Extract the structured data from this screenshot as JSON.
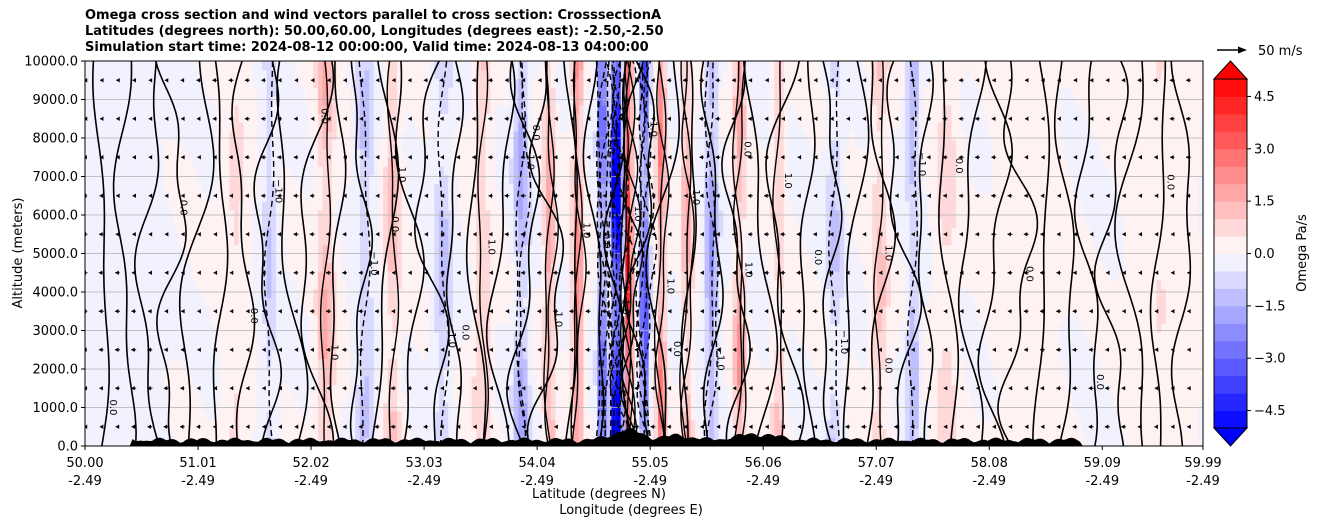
{
  "chart_data": {
    "type": "contour-section",
    "title_lines": [
      "Omega cross section and wind vectors parallel to cross section: CrosssectionA",
      "Latitudes (degrees north): 50.00,60.00, Longitudes (degrees east): -2.50,-2.50",
      "Simulation start time: 2024-08-12 00:00:00, Valid time: 2024-08-13 04:00:00"
    ],
    "xlabel": "Latitude (degrees N)",
    "xlabel2": "Longitude (degrees E)",
    "ylabel": "Altitude (meters)",
    "xlim": [
      50.0,
      59.99
    ],
    "ylim": [
      0,
      10000
    ],
    "x_ticks": [
      {
        "lat": 50.0,
        "lat_label": "50.00",
        "lon_label": "-2.49"
      },
      {
        "lat": 51.01,
        "lat_label": "51.01",
        "lon_label": "-2.49"
      },
      {
        "lat": 52.02,
        "lat_label": "52.02",
        "lon_label": "-2.49"
      },
      {
        "lat": 53.03,
        "lat_label": "53.03",
        "lon_label": "-2.49"
      },
      {
        "lat": 54.04,
        "lat_label": "54.04",
        "lon_label": "-2.49"
      },
      {
        "lat": 55.05,
        "lat_label": "55.05",
        "lon_label": "-2.49"
      },
      {
        "lat": 56.06,
        "lat_label": "56.06",
        "lon_label": "-2.49"
      },
      {
        "lat": 57.07,
        "lat_label": "57.07",
        "lon_label": "-2.49"
      },
      {
        "lat": 58.08,
        "lat_label": "58.08",
        "lon_label": "-2.49"
      },
      {
        "lat": 59.09,
        "lat_label": "59.09",
        "lon_label": "-2.49"
      },
      {
        "lat": 59.99,
        "lat_label": "59.99",
        "lon_label": "-2.49"
      }
    ],
    "y_ticks": [
      {
        "value": 0,
        "label": "0.0"
      },
      {
        "value": 1000,
        "label": "1000.0"
      },
      {
        "value": 2000,
        "label": "2000.0"
      },
      {
        "value": 3000,
        "label": "3000.0"
      },
      {
        "value": 4000,
        "label": "4000.0"
      },
      {
        "value": 5000,
        "label": "5000.0"
      },
      {
        "value": 6000,
        "label": "6000.0"
      },
      {
        "value": 7000,
        "label": "7000.0"
      },
      {
        "value": 8000,
        "label": "8000.0"
      },
      {
        "value": 9000,
        "label": "9000.0"
      },
      {
        "value": 10000,
        "label": "10000.0"
      }
    ],
    "grid": "horizontal",
    "colorbar": {
      "label": "Omega Pa/s",
      "vmin": -5.0,
      "vmax": 5.0,
      "step": 0.5,
      "extend": "both",
      "cmap": "bwr",
      "ticks": [
        {
          "value": 4.5,
          "label": "4.5"
        },
        {
          "value": 3.0,
          "label": "3.0"
        },
        {
          "value": 1.5,
          "label": "1.5"
        },
        {
          "value": 0.0,
          "label": "0.0"
        },
        {
          "value": -1.5,
          "label": "−1.5"
        },
        {
          "value": -3.0,
          "label": "−3.0"
        },
        {
          "value": -4.5,
          "label": "−4.5"
        }
      ]
    },
    "quiver_key": {
      "label": "50 m/s",
      "speed": 50
    },
    "contour_levels": [
      -1.0,
      0.0,
      1.0
    ],
    "omega_features": [
      {
        "lat": 50.25,
        "omega": -0.3,
        "width": 0.3
      },
      {
        "lat": 51.35,
        "omega": 0.5,
        "width": 0.1
      },
      {
        "lat": 51.65,
        "omega": -0.8,
        "width": 0.07
      },
      {
        "lat": 52.15,
        "omega": 1.2,
        "width": 0.08
      },
      {
        "lat": 52.5,
        "omega": -0.9,
        "width": 0.08
      },
      {
        "lat": 52.75,
        "omega": 1.0,
        "width": 0.07
      },
      {
        "lat": 53.2,
        "omega": -0.9,
        "width": 0.09
      },
      {
        "lat": 53.55,
        "omega": 0.8,
        "width": 0.08
      },
      {
        "lat": 53.9,
        "omega": -1.3,
        "width": 0.07
      },
      {
        "lat": 54.15,
        "omega": 1.5,
        "width": 0.05
      },
      {
        "lat": 54.4,
        "omega": 2.0,
        "width": 0.05
      },
      {
        "lat": 54.62,
        "omega": -2.5,
        "width": 0.04
      },
      {
        "lat": 54.75,
        "omega": -4.8,
        "width": 0.05
      },
      {
        "lat": 54.86,
        "omega": 4.0,
        "width": 0.03
      },
      {
        "lat": 55.0,
        "omega": -3.0,
        "width": 0.04
      },
      {
        "lat": 55.15,
        "omega": 2.0,
        "width": 0.04
      },
      {
        "lat": 55.38,
        "omega": 1.3,
        "width": 0.05
      },
      {
        "lat": 55.6,
        "omega": -1.6,
        "width": 0.06
      },
      {
        "lat": 55.85,
        "omega": 1.5,
        "width": 0.05
      },
      {
        "lat": 56.2,
        "omega": 0.8,
        "width": 0.06
      },
      {
        "lat": 56.7,
        "omega": -0.8,
        "width": 0.08
      },
      {
        "lat": 57.1,
        "omega": 0.9,
        "width": 0.08
      },
      {
        "lat": 57.4,
        "omega": -1.1,
        "width": 0.06
      },
      {
        "lat": 57.7,
        "omega": 0.6,
        "width": 0.1
      },
      {
        "lat": 58.4,
        "omega": 0.3,
        "width": 0.25
      },
      {
        "lat": 59.6,
        "omega": 0.4,
        "width": 0.2
      }
    ],
    "contour_labels": [
      "0.0",
      "1.0",
      "−1.0"
    ]
  }
}
